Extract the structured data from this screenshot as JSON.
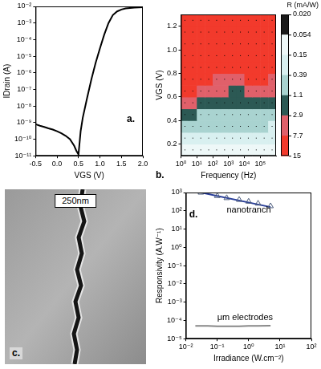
{
  "chart_data": [
    {
      "type": "line",
      "panel_label": "a.",
      "x_label": "VGS (V)",
      "y_label": "IDrain (A)",
      "log": "y",
      "grid": false,
      "x": [
        -0.5,
        -0.4,
        -0.3,
        -0.2,
        -0.1,
        0,
        0.1,
        0.2,
        0.3,
        0.4,
        0.45,
        0.5,
        0.55,
        0.6,
        0.7,
        0.8,
        0.9,
        1.0,
        1.1,
        1.2,
        1.3,
        1.4,
        1.5,
        1.6,
        1.8,
        2.0
      ],
      "series": [
        {
          "color": "#000000",
          "values": [
            8e-10,
            6.5e-10,
            5.5e-10,
            4.5e-10,
            3.8e-10,
            3e-10,
            2.3e-10,
            1.6e-10,
            1e-10,
            4e-11,
            2e-11,
            1.2e-11,
            3e-10,
            2e-09,
            3e-08,
            4e-07,
            4e-06,
            3e-05,
            0.0002,
            0.001,
            0.003,
            0.005,
            0.0065,
            0.0075,
            0.0085,
            0.009
          ]
        }
      ],
      "xlim": [
        -0.5,
        2.0
      ],
      "xticks": [
        -0.5,
        {
          "value": 0,
          "label": "0.0"
        },
        0.5,
        {
          "value": 1,
          "label": "1.0"
        },
        1.5,
        {
          "value": 2,
          "label": "2.0"
        }
      ],
      "ylim": [
        1e-11,
        0.01
      ],
      "yticks": [
        {
          "value": 1e-11,
          "label": "10⁻¹¹"
        },
        {
          "value": 1e-10,
          "label": "10⁻¹⁰"
        },
        {
          "value": 1e-09,
          "label": "10⁻⁹"
        },
        {
          "value": 1e-08,
          "label": "10⁻⁸"
        },
        {
          "value": 1e-07,
          "label": "10⁻⁷"
        },
        {
          "value": 1e-06,
          "label": "10⁻⁶"
        },
        {
          "value": 1e-05,
          "label": "10⁻⁵"
        },
        {
          "value": 0.0001,
          "label": "10⁻⁴"
        },
        {
          "value": 0.001,
          "label": "10⁻³"
        },
        {
          "value": 0.01,
          "label": "10⁻²"
        }
      ]
    },
    {
      "type": "heatmap",
      "panel_label": "b.",
      "x_label": "Frequency (Hz)",
      "y_label": "VGS (V)",
      "log": "x",
      "grid": false,
      "xlim": [
        1,
        1000000
      ],
      "xticks": [
        {
          "value": 1,
          "label": "10⁰"
        },
        {
          "value": 10,
          "label": "10¹"
        },
        {
          "value": 100,
          "label": "10²"
        },
        {
          "value": 1000,
          "label": "10³"
        },
        {
          "value": 10000,
          "label": "10⁴"
        },
        {
          "value": 100000,
          "label": "10⁵"
        }
      ],
      "ylim": [
        0.1,
        1.3
      ],
      "yticks": [
        0.2,
        0.4,
        0.6,
        0.8,
        {
          "value": 1,
          "label": "1.0"
        },
        1.2
      ],
      "x_edges": [
        1,
        3.16,
        10,
        31.6,
        100,
        316,
        1000,
        3160,
        10000,
        31600,
        100000,
        316000,
        1000000
      ],
      "y_edges": [
        0.1,
        0.2,
        0.3,
        0.4,
        0.5,
        0.6,
        0.7,
        0.8,
        0.9,
        1.0,
        1.1,
        1.2,
        1.3
      ],
      "cells": [
        [
          0.1,
          0.1,
          0.12,
          0.12,
          0.12,
          0.12,
          0.12,
          0.1,
          0.1,
          0.1,
          0.08,
          0.06
        ],
        [
          0.25,
          0.25,
          0.3,
          0.3,
          0.3,
          0.3,
          0.28,
          0.28,
          0.25,
          0.25,
          0.2,
          0.15
        ],
        [
          0.6,
          0.55,
          0.5,
          0.5,
          0.5,
          0.5,
          0.45,
          0.45,
          0.45,
          0.45,
          0.4,
          0.3
        ],
        [
          1.5,
          1.2,
          0.9,
          0.8,
          0.8,
          0.8,
          0.75,
          0.75,
          0.8,
          0.9,
          0.8,
          0.5
        ],
        [
          4,
          3.2,
          2,
          1.6,
          1.5,
          1.5,
          1.4,
          1.4,
          1.6,
          2.2,
          2,
          1.2
        ],
        [
          9,
          8,
          5,
          3.5,
          3,
          3,
          2.8,
          2.8,
          3.5,
          6,
          6,
          3
        ],
        [
          14,
          13,
          10,
          8,
          7.5,
          7,
          6.5,
          6.5,
          8,
          11,
          10,
          7
        ],
        [
          15.5,
          15.5,
          14,
          13,
          12,
          12,
          11.5,
          11.5,
          12.5,
          14,
          14,
          12
        ],
        [
          16,
          16,
          16,
          15.5,
          15.5,
          15,
          15,
          15,
          15.5,
          15.5,
          15.5,
          14
        ],
        [
          16,
          16,
          16,
          16,
          16,
          15.5,
          15.5,
          15.5,
          16,
          16,
          16,
          15
        ],
        [
          16,
          16,
          16,
          16,
          16,
          15.5,
          15.5,
          15.5,
          16,
          16,
          16,
          15
        ],
        [
          16,
          16,
          16,
          16,
          16,
          16,
          16,
          16,
          16,
          16,
          16,
          15.5
        ]
      ],
      "colorbar": {
        "title": "R (mA/W)",
        "ticks": [
          {
            "value": 0.02,
            "label": "0.020"
          },
          0.054,
          0.15,
          0.39,
          1.1,
          2.9,
          7.7,
          15
        ],
        "colors": [
          "#1a1a1a",
          "#eef8f8",
          "#d9f0f0",
          "#a9d3d0",
          "#2c5954",
          "#e0606a",
          "#f23a2c"
        ]
      }
    },
    {
      "type": "scatter",
      "panel_label": "d.",
      "x_label": "Irradiance (W.cm⁻²)",
      "y_label": "Responsivity (A.W⁻¹)",
      "log": true,
      "grid": false,
      "xlim": [
        0.01,
        100
      ],
      "xticks": [
        {
          "value": 0.01,
          "label": "10⁻²"
        },
        {
          "value": 0.1,
          "label": "10⁻¹"
        },
        {
          "value": 1,
          "label": "10⁰"
        },
        {
          "value": 10,
          "label": "10¹"
        },
        {
          "value": 100,
          "label": "10²"
        }
      ],
      "ylim": [
        1e-05,
        1000
      ],
      "yticks": [
        {
          "value": 1e-05,
          "label": "10⁻⁵"
        },
        {
          "value": 0.0001,
          "label": "10⁻⁴"
        },
        {
          "value": 0.001,
          "label": "10⁻³"
        },
        {
          "value": 0.01,
          "label": "10⁻²"
        },
        {
          "value": 0.1,
          "label": "10⁻¹"
        },
        {
          "value": 1,
          "label": "10⁰"
        },
        {
          "value": 10,
          "label": "10¹"
        },
        {
          "value": 100,
          "label": "10²"
        },
        {
          "value": 1000,
          "label": "10³"
        }
      ],
      "series": [
        {
          "name": "nanotranch",
          "type": "scatter",
          "marker": "triangle",
          "color": "#4a5a7a",
          "x": [
            0.03,
            0.1,
            0.2,
            0.5,
            1,
            2,
            5
          ],
          "values": [
            1000,
            650,
            500,
            400,
            320,
            250,
            180
          ]
        },
        {
          "type": "line",
          "color": "#2a3f9a",
          "x": [
            0.03,
            5
          ],
          "values": [
            1000,
            160
          ]
        },
        {
          "name": "μm electrodes",
          "type": "line",
          "color": "#888888",
          "x": [
            0.02,
            0.05,
            0.1,
            0.5,
            1,
            2,
            5
          ],
          "values": [
            5e-05,
            5e-05,
            4.8e-05,
            4.8e-05,
            5e-05,
            5e-05,
            5.2e-05
          ]
        }
      ]
    }
  ],
  "image": {
    "panel_label": "c.",
    "scale_bar": "250nm"
  }
}
